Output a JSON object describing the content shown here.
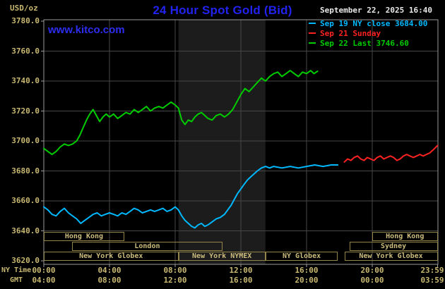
{
  "header": {
    "title": "24 Hour Spot Gold (Bid)",
    "datetime": "September 22, 2025 16:40"
  },
  "watermark": "www.kitco.com",
  "colors": {
    "background": "#000000",
    "title_blue": "#2222ee",
    "link_blue": "#2d2df0",
    "datetime_text": "#e8e8e8",
    "axis_tan": "#c8b872",
    "grid": "#474747",
    "frame": "#9a9a9a",
    "band": "#1c1c1c",
    "session_border": "#93844a",
    "session_text": "#cdbd7e"
  },
  "legend": {
    "items": [
      {
        "key": "sep19",
        "text": "Sep 19 NY close 3684.00",
        "color": "#00b8ff"
      },
      {
        "key": "sep21",
        "text": "Sep 21 Sunday",
        "color": "#ff2222"
      },
      {
        "key": "sep22",
        "text": "Sep 22 Last 3746.60",
        "color": "#00cc00"
      }
    ]
  },
  "axes": {
    "y": {
      "unit": "USD/oz",
      "ticks": [
        "3780.0",
        "3760.0",
        "3740.0",
        "3720.0",
        "3700.0",
        "3680.0",
        "3660.0",
        "3640.0",
        "3620.0"
      ]
    },
    "x": {
      "label_ny": "NY Time",
      "label_gmt": "GMT",
      "ticks": [
        {
          "h": 0,
          "ny": "00:00",
          "gmt": "04:00"
        },
        {
          "h": 4,
          "ny": "04:00",
          "gmt": "08:00"
        },
        {
          "h": 8,
          "ny": "08:00",
          "gmt": "12:00"
        },
        {
          "h": 12,
          "ny": "12:00",
          "gmt": "16:00"
        },
        {
          "h": 16,
          "ny": "16:00",
          "gmt": "20:00"
        },
        {
          "h": 20,
          "ny": "20:00",
          "gmt": "00:00"
        },
        {
          "h": 23.98,
          "ny": "23:59",
          "gmt": "03:59"
        }
      ]
    }
  },
  "sessions": {
    "rows": [
      {
        "boxes": [
          {
            "label": "Hong Kong",
            "start": 0,
            "end": 4.9
          },
          {
            "label": "Hong Kong",
            "start": 20,
            "end": 23.98
          }
        ]
      },
      {
        "boxes": [
          {
            "label": "London",
            "start": 1.7,
            "end": 10.9
          },
          {
            "label": "Sydney",
            "start": 18.6,
            "end": 23.98
          }
        ]
      },
      {
        "boxes": [
          {
            "label": "New York Globex",
            "start": 0,
            "end": 8.2
          },
          {
            "label": "New York NYMEX",
            "start": 8.2,
            "end": 13.5
          },
          {
            "label": "NY Globex",
            "start": 13.5,
            "end": 17.9
          },
          {
            "label": "New York Globex",
            "start": 18.3,
            "end": 23.98
          }
        ]
      }
    ]
  },
  "chart_data": {
    "type": "line",
    "title": "24 Hour Spot Gold (Bid)",
    "ylabel": "USD/oz",
    "x_unit": "ny_hour",
    "x_range": [
      0,
      24
    ],
    "y_range": [
      3620,
      3780
    ],
    "grid": true,
    "legend_position": "top-right",
    "band": {
      "start": 8.2,
      "end": 13.5
    },
    "series": [
      {
        "key": "sep19",
        "name": "Sep 19 NY close",
        "close": 3684.0,
        "color": "#00b8ff",
        "points": [
          [
            0,
            3656
          ],
          [
            0.25,
            3654
          ],
          [
            0.5,
            3651
          ],
          [
            0.75,
            3650
          ],
          [
            1,
            3653
          ],
          [
            1.25,
            3655
          ],
          [
            1.5,
            3652
          ],
          [
            1.75,
            3650
          ],
          [
            2,
            3648
          ],
          [
            2.25,
            3645
          ],
          [
            2.5,
            3647
          ],
          [
            2.75,
            3649
          ],
          [
            3,
            3651
          ],
          [
            3.25,
            3652
          ],
          [
            3.5,
            3650
          ],
          [
            3.75,
            3651
          ],
          [
            4,
            3652
          ],
          [
            4.25,
            3651
          ],
          [
            4.5,
            3650
          ],
          [
            4.75,
            3652
          ],
          [
            5,
            3651
          ],
          [
            5.25,
            3653
          ],
          [
            5.5,
            3655
          ],
          [
            5.75,
            3654
          ],
          [
            6,
            3652
          ],
          [
            6.25,
            3653
          ],
          [
            6.5,
            3654
          ],
          [
            6.75,
            3653
          ],
          [
            7,
            3654
          ],
          [
            7.25,
            3655
          ],
          [
            7.5,
            3653
          ],
          [
            7.75,
            3654
          ],
          [
            8,
            3656
          ],
          [
            8.2,
            3654
          ],
          [
            8.4,
            3650
          ],
          [
            8.6,
            3647
          ],
          [
            8.8,
            3645
          ],
          [
            9,
            3643
          ],
          [
            9.2,
            3642
          ],
          [
            9.4,
            3644
          ],
          [
            9.6,
            3645
          ],
          [
            9.8,
            3643
          ],
          [
            10,
            3644
          ],
          [
            10.25,
            3646
          ],
          [
            10.5,
            3648
          ],
          [
            10.75,
            3649
          ],
          [
            11,
            3651
          ],
          [
            11.2,
            3654
          ],
          [
            11.4,
            3657
          ],
          [
            11.6,
            3661
          ],
          [
            11.8,
            3665
          ],
          [
            12,
            3668
          ],
          [
            12.2,
            3671
          ],
          [
            12.4,
            3674
          ],
          [
            12.6,
            3676
          ],
          [
            12.8,
            3678
          ],
          [
            13,
            3680
          ],
          [
            13.25,
            3682
          ],
          [
            13.5,
            3683
          ],
          [
            13.75,
            3682
          ],
          [
            14,
            3683
          ],
          [
            14.5,
            3682
          ],
          [
            15,
            3683
          ],
          [
            15.5,
            3682
          ],
          [
            16,
            3683
          ],
          [
            16.5,
            3684
          ],
          [
            17,
            3683
          ],
          [
            17.5,
            3684
          ],
          [
            17.9,
            3684
          ]
        ]
      },
      {
        "key": "sep21",
        "name": "Sep 21 Sunday",
        "color": "#ff2222",
        "points": [
          [
            18.3,
            3686
          ],
          [
            18.5,
            3688
          ],
          [
            18.7,
            3687
          ],
          [
            18.9,
            3689
          ],
          [
            19.1,
            3690
          ],
          [
            19.3,
            3688
          ],
          [
            19.5,
            3687
          ],
          [
            19.7,
            3689
          ],
          [
            19.9,
            3688
          ],
          [
            20.1,
            3687
          ],
          [
            20.3,
            3689
          ],
          [
            20.5,
            3690
          ],
          [
            20.7,
            3688
          ],
          [
            20.9,
            3689
          ],
          [
            21.1,
            3690
          ],
          [
            21.3,
            3689
          ],
          [
            21.5,
            3687
          ],
          [
            21.7,
            3688
          ],
          [
            21.9,
            3690
          ],
          [
            22.1,
            3691
          ],
          [
            22.3,
            3690
          ],
          [
            22.5,
            3689
          ],
          [
            22.7,
            3690
          ],
          [
            22.9,
            3691
          ],
          [
            23.1,
            3690
          ],
          [
            23.3,
            3691
          ],
          [
            23.5,
            3692
          ],
          [
            23.7,
            3694
          ],
          [
            23.98,
            3697
          ]
        ]
      },
      {
        "key": "sep22",
        "name": "Sep 22",
        "last": 3746.6,
        "color": "#00cc00",
        "points": [
          [
            0,
            3695
          ],
          [
            0.25,
            3693
          ],
          [
            0.5,
            3691
          ],
          [
            0.75,
            3693
          ],
          [
            1,
            3696
          ],
          [
            1.25,
            3698
          ],
          [
            1.5,
            3697
          ],
          [
            1.75,
            3698
          ],
          [
            2,
            3700
          ],
          [
            2.2,
            3704
          ],
          [
            2.4,
            3709
          ],
          [
            2.6,
            3714
          ],
          [
            2.8,
            3718
          ],
          [
            3,
            3721
          ],
          [
            3.2,
            3717
          ],
          [
            3.4,
            3713
          ],
          [
            3.6,
            3716
          ],
          [
            3.8,
            3718
          ],
          [
            4,
            3716
          ],
          [
            4.25,
            3718
          ],
          [
            4.5,
            3715
          ],
          [
            4.75,
            3717
          ],
          [
            5,
            3719
          ],
          [
            5.25,
            3718
          ],
          [
            5.5,
            3721
          ],
          [
            5.75,
            3719
          ],
          [
            6,
            3721
          ],
          [
            6.25,
            3723
          ],
          [
            6.5,
            3720
          ],
          [
            6.75,
            3722
          ],
          [
            7,
            3723
          ],
          [
            7.25,
            3722
          ],
          [
            7.5,
            3724
          ],
          [
            7.75,
            3726
          ],
          [
            8,
            3724
          ],
          [
            8.2,
            3722
          ],
          [
            8.4,
            3714
          ],
          [
            8.6,
            3711
          ],
          [
            8.8,
            3714
          ],
          [
            9,
            3713
          ],
          [
            9.2,
            3716
          ],
          [
            9.4,
            3718
          ],
          [
            9.6,
            3719
          ],
          [
            9.8,
            3717
          ],
          [
            10,
            3715
          ],
          [
            10.25,
            3714
          ],
          [
            10.5,
            3717
          ],
          [
            10.75,
            3718
          ],
          [
            11,
            3716
          ],
          [
            11.25,
            3718
          ],
          [
            11.5,
            3721
          ],
          [
            11.75,
            3726
          ],
          [
            12,
            3731
          ],
          [
            12.25,
            3735
          ],
          [
            12.5,
            3733
          ],
          [
            12.75,
            3736
          ],
          [
            13,
            3739
          ],
          [
            13.25,
            3742
          ],
          [
            13.5,
            3740
          ],
          [
            13.75,
            3743
          ],
          [
            14,
            3745
          ],
          [
            14.25,
            3746
          ],
          [
            14.5,
            3743
          ],
          [
            14.75,
            3745
          ],
          [
            15,
            3747
          ],
          [
            15.25,
            3745
          ],
          [
            15.5,
            3743
          ],
          [
            15.75,
            3746
          ],
          [
            16,
            3745
          ],
          [
            16.25,
            3747
          ],
          [
            16.45,
            3745
          ],
          [
            16.67,
            3746.6
          ]
        ]
      }
    ]
  }
}
